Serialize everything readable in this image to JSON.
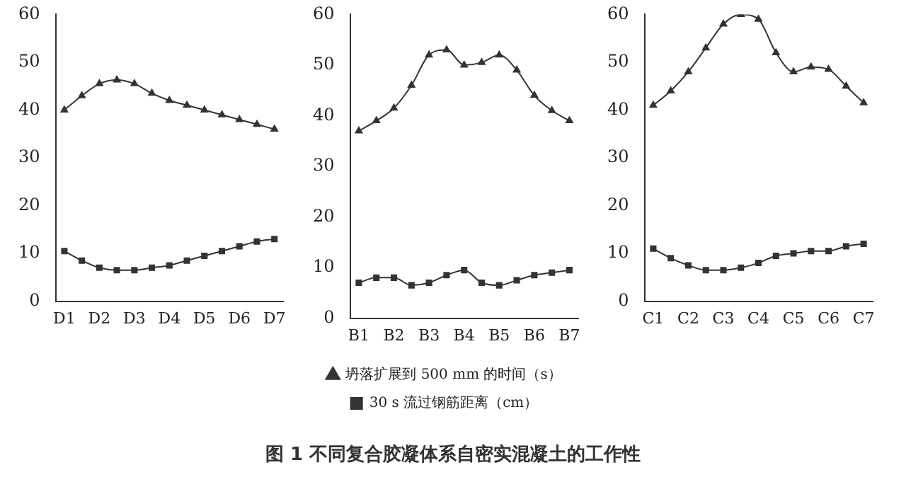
{
  "chart_data": [
    {
      "type": "line",
      "categories": [
        "D1",
        null,
        "D2",
        null,
        "D3",
        null,
        "D4",
        null,
        "D5",
        null,
        "D6",
        null,
        "D7"
      ],
      "ylim": [
        0,
        60
      ],
      "yticks": [
        0,
        10,
        20,
        30,
        40,
        50,
        60
      ],
      "grid": false,
      "line_style": "solid",
      "series": [
        {
          "color": "#333333",
          "marker": "triangle",
          "values": [
            40,
            43,
            45.5,
            46.3,
            45.5,
            43.5,
            42,
            41,
            40,
            39,
            38,
            37,
            36
          ]
        },
        {
          "color": "#333333",
          "marker": "square",
          "values": [
            10.5,
            8.5,
            7,
            6.5,
            6.5,
            7,
            7.5,
            8.5,
            9.5,
            10.5,
            11.5,
            12.5,
            13
          ]
        }
      ]
    },
    {
      "type": "line",
      "title": "图 1 不同复合胶凝体系自密实混凝土的工作性",
      "legend": "bottom",
      "categories": [
        "B1",
        null,
        "B2",
        null,
        "B3",
        null,
        "B4",
        null,
        "B5",
        null,
        "B6",
        null,
        "B7"
      ],
      "ylim": [
        0,
        60
      ],
      "yticks": [
        0,
        10,
        20,
        30,
        40,
        50,
        60
      ],
      "grid": false,
      "line_style": "solid",
      "series": [
        {
          "name": "坍落扩展到 500 mm 的时间（s）",
          "color": "#333333",
          "marker": "triangle",
          "values": [
            37,
            39,
            41.5,
            46,
            52,
            53,
            50,
            50.5,
            52,
            49,
            44,
            41,
            39
          ]
        },
        {
          "name": "30 s 流过钢筋距离（cm）",
          "color": "#333333",
          "marker": "square",
          "values": [
            7,
            8,
            8,
            6.5,
            7,
            8.5,
            9.5,
            7,
            6.5,
            7.5,
            8.5,
            9,
            9.5
          ]
        }
      ]
    },
    {
      "type": "line",
      "categories": [
        "C1",
        null,
        "C2",
        null,
        "C3",
        null,
        "C4",
        null,
        "C5",
        null,
        "C6",
        null,
        "C7"
      ],
      "ylim": [
        0,
        60
      ],
      "yticks": [
        0,
        10,
        20,
        30,
        40,
        50,
        60
      ],
      "grid": false,
      "line_style": "solid",
      "series": [
        {
          "color": "#333333",
          "marker": "triangle",
          "values": [
            41,
            44,
            48,
            53,
            58,
            60,
            59,
            52,
            48,
            49,
            48.5,
            45,
            41.5
          ]
        },
        {
          "color": "#333333",
          "marker": "square",
          "values": [
            11,
            9,
            7.5,
            6.5,
            6.5,
            7,
            8,
            9.5,
            10,
            10.5,
            10.5,
            11.5,
            12
          ]
        }
      ]
    }
  ]
}
